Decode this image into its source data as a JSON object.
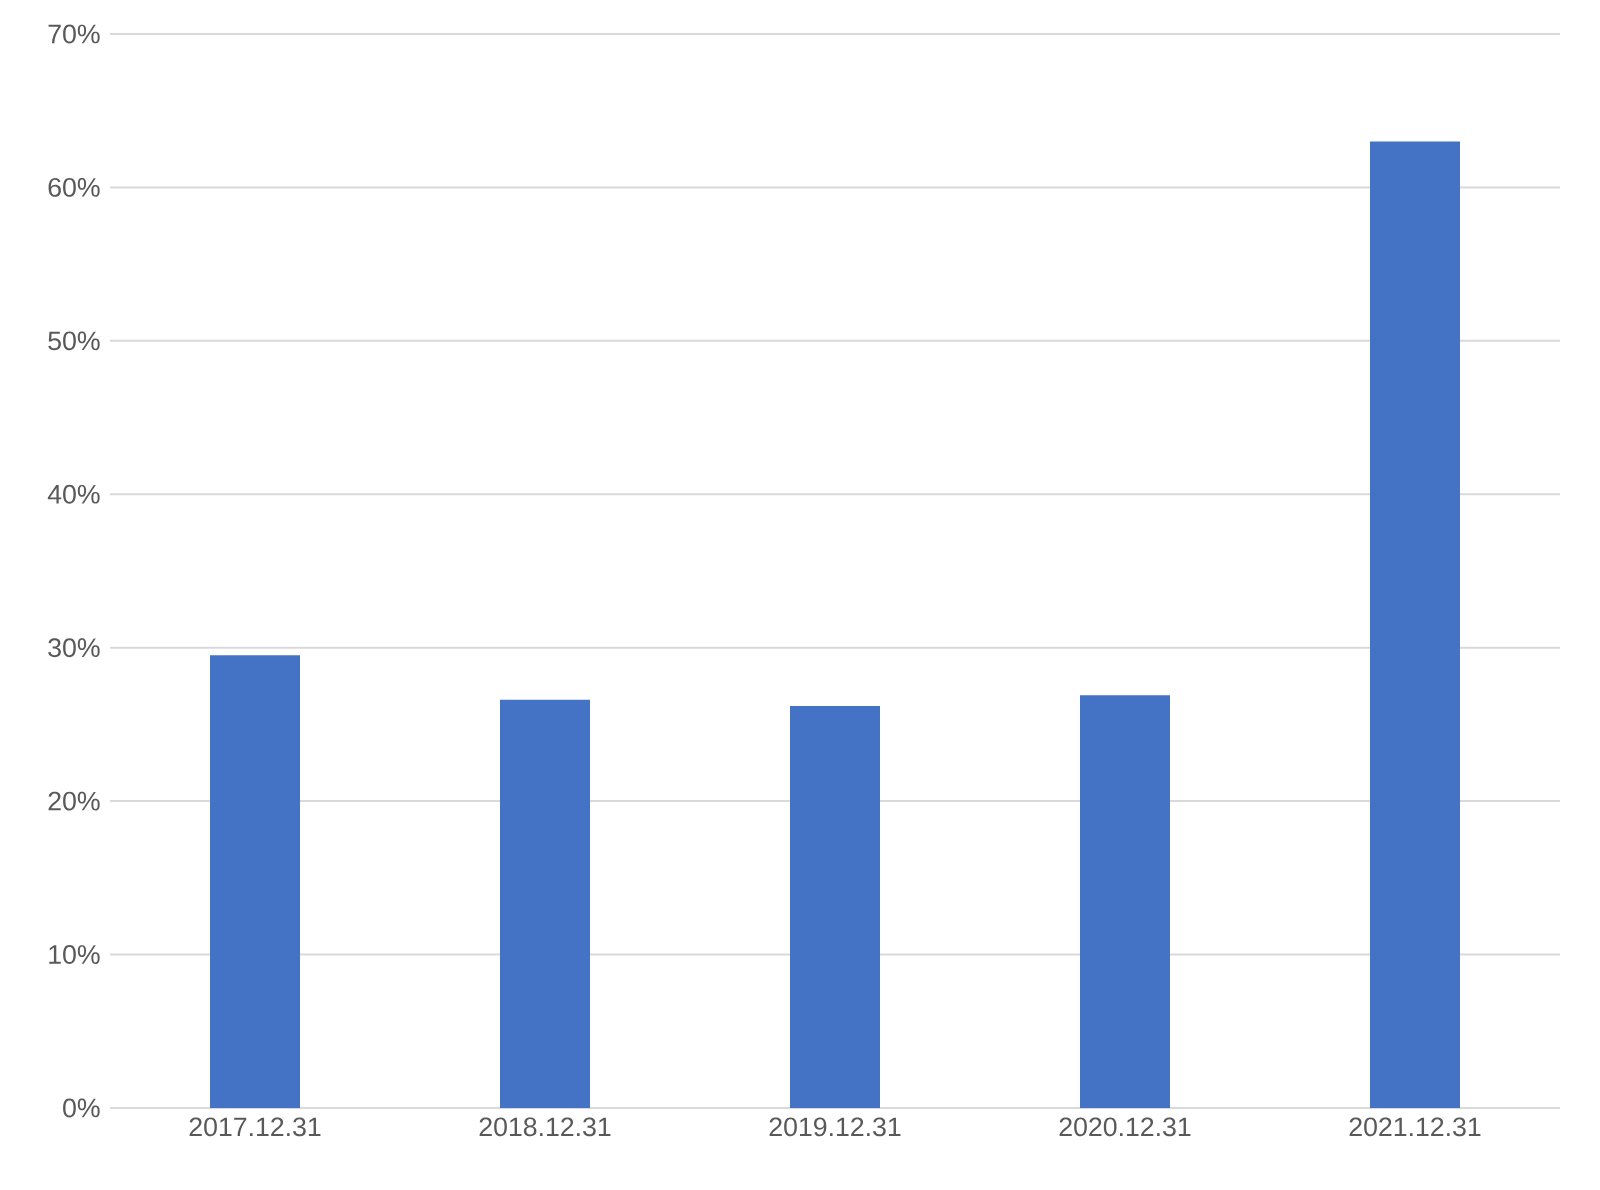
{
  "chart_data": {
    "type": "bar",
    "categories": [
      "2017.12.31",
      "2018.12.31",
      "2019.12.31",
      "2020.12.31",
      "2021.12.31"
    ],
    "values": [
      29.5,
      26.6,
      26.2,
      26.9,
      63.0
    ],
    "color": "#4472c4",
    "ylim": [
      0,
      70
    ],
    "yticks": [
      {
        "value": 0,
        "label": "0%"
      },
      {
        "value": 10,
        "label": "10%"
      },
      {
        "value": 20,
        "label": "20%"
      },
      {
        "value": 30,
        "label": "30%"
      },
      {
        "value": 40,
        "label": "40%"
      },
      {
        "value": 50,
        "label": "50%"
      },
      {
        "value": 60,
        "label": "60%"
      },
      {
        "value": 70,
        "label": "70%"
      }
    ],
    "grid": "y"
  }
}
